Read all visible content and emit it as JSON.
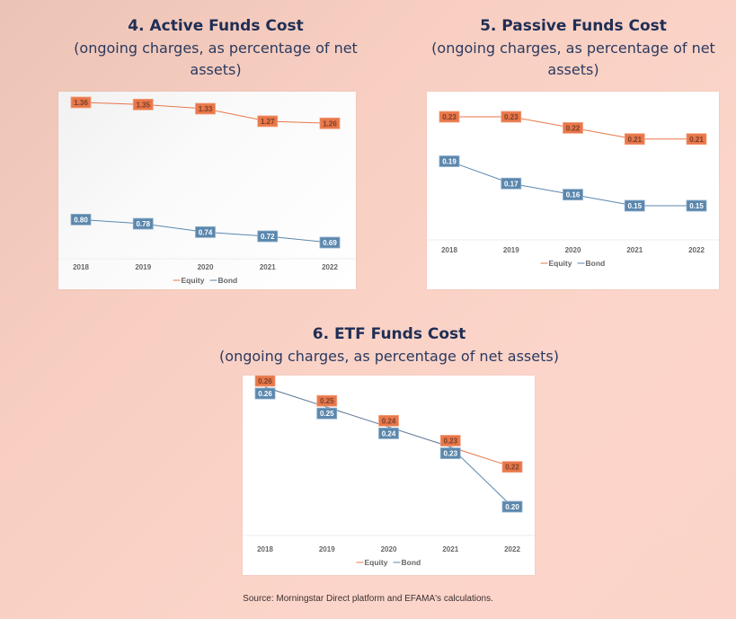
{
  "source": "Source: Morningstar Direct platform and EFAMA's calculations.",
  "colors": {
    "equity": "#e8774a",
    "bond": "#5b87ad",
    "equity_text": "#7a3f2a",
    "bond_text": "#ffffff"
  },
  "legend": {
    "equity": "Equity",
    "bond": "Bond"
  },
  "chart_data": [
    {
      "type": "line",
      "title": "4. Active Funds Cost",
      "subtitle_lines": [
        "(ongoing charges, as percentage of net",
        "assets)"
      ],
      "categories": [
        "2018",
        "2019",
        "2020",
        "2021",
        "2022"
      ],
      "series": [
        {
          "name": "Equity",
          "values": [
            1.36,
            1.35,
            1.33,
            1.27,
            1.26
          ],
          "labels": [
            "1.36",
            "1.35",
            "1.33",
            "1.27",
            "1.26"
          ]
        },
        {
          "name": "Bond",
          "values": [
            0.8,
            0.78,
            0.74,
            0.72,
            0.69
          ],
          "labels": [
            "0.80",
            "0.78",
            "0.74",
            "0.72",
            "0.69"
          ]
        }
      ],
      "ylim": [
        0.6,
        1.4
      ],
      "legend": "bottom",
      "grid": false
    },
    {
      "type": "line",
      "title": "5. Passive Funds Cost",
      "subtitle_lines": [
        "(ongoing charges, as percentage of net",
        "assets)"
      ],
      "categories": [
        "2018",
        "2019",
        "2020",
        "2021",
        "2022"
      ],
      "series": [
        {
          "name": "Equity",
          "values": [
            0.23,
            0.23,
            0.22,
            0.21,
            0.21
          ],
          "labels": [
            "0.23",
            "0.23",
            "0.22",
            "0.21",
            "0.21"
          ]
        },
        {
          "name": "Bond",
          "values": [
            0.19,
            0.17,
            0.16,
            0.15,
            0.15
          ],
          "labels": [
            "0.19",
            "0.17",
            "0.16",
            "0.15",
            "0.15"
          ]
        }
      ],
      "ylim": [
        0.12,
        0.24
      ],
      "legend": "bottom",
      "grid": false
    },
    {
      "type": "line",
      "title": "6. ETF Funds Cost",
      "subtitle_lines": [
        "(ongoing charges, as percentage of net assets)"
      ],
      "categories": [
        "2018",
        "2019",
        "2020",
        "2021",
        "2022"
      ],
      "series": [
        {
          "name": "Equity",
          "values": [
            0.26,
            0.25,
            0.24,
            0.23,
            0.22
          ],
          "labels": [
            "0.26",
            "0.25",
            "0.24",
            "0.23",
            "0.22"
          ]
        },
        {
          "name": "Bond",
          "values": [
            0.26,
            0.25,
            0.24,
            0.23,
            0.2
          ],
          "labels": [
            "0.26",
            "0.25",
            "0.24",
            "0.23",
            "0.20"
          ]
        }
      ],
      "ylim": [
        0.185,
        0.265
      ],
      "legend": "bottom",
      "grid": false
    }
  ]
}
